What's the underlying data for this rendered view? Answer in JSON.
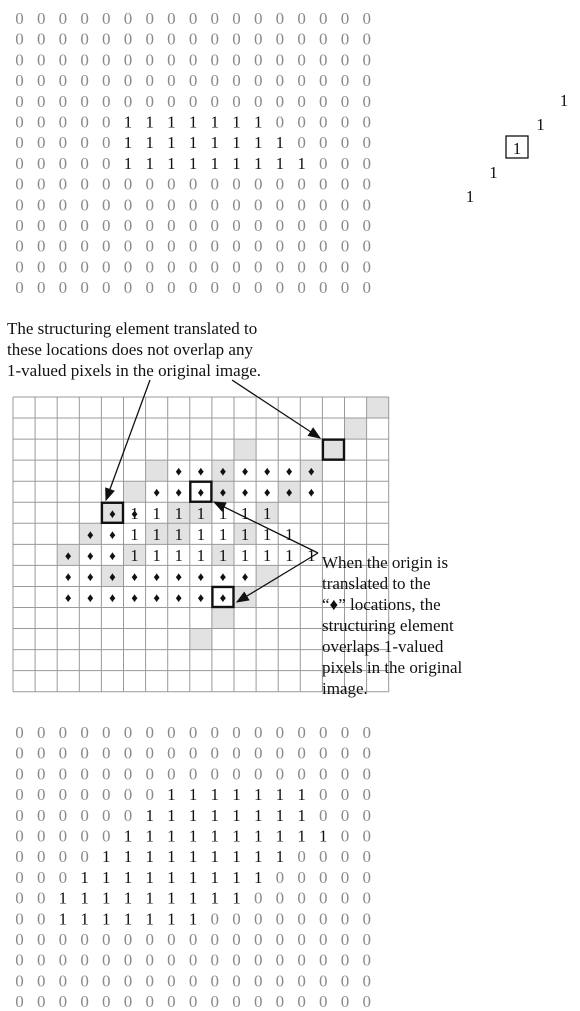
{
  "colors": {
    "zero_text": "#8a8a8a",
    "one_text": "#111111",
    "grid_line": "#9a9a9a",
    "shaded_cell": "#e2e2e2",
    "highlight_box": "#111111"
  },
  "original_image": {
    "rows": [
      "00000000000000000",
      "00000000000000000",
      "00000000000000000",
      "00000000000000000",
      "00000000000000000",
      "00000111111100000",
      "00000111111110000",
      "00000111111111000",
      "00000000000000000",
      "00000000000000000",
      "00000000000000000",
      "00000000000000000",
      "00000000000000000",
      "00000000000000000"
    ]
  },
  "structuring_element": {
    "cells": [
      "1",
      "1",
      "1",
      "1",
      "1"
    ],
    "origin_index": 2
  },
  "dilation_grid": {
    "num_rows": 14,
    "num_cols": 17,
    "ones": [
      [
        5,
        5
      ],
      [
        5,
        6
      ],
      [
        5,
        7
      ],
      [
        5,
        8
      ],
      [
        5,
        9
      ],
      [
        5,
        10
      ],
      [
        5,
        11
      ],
      [
        6,
        5
      ],
      [
        6,
        6
      ],
      [
        6,
        7
      ],
      [
        6,
        8
      ],
      [
        6,
        9
      ],
      [
        6,
        10
      ],
      [
        6,
        11
      ],
      [
        6,
        12
      ],
      [
        7,
        5
      ],
      [
        7,
        6
      ],
      [
        7,
        7
      ],
      [
        7,
        8
      ],
      [
        7,
        9
      ],
      [
        7,
        10
      ],
      [
        7,
        11
      ],
      [
        7,
        12
      ],
      [
        7,
        13
      ]
    ],
    "diamonds": [
      [
        3,
        7
      ],
      [
        3,
        8
      ],
      [
        3,
        9
      ],
      [
        3,
        10
      ],
      [
        3,
        11
      ],
      [
        3,
        12
      ],
      [
        3,
        13
      ],
      [
        4,
        6
      ],
      [
        4,
        7
      ],
      [
        4,
        8
      ],
      [
        4,
        9
      ],
      [
        4,
        10
      ],
      [
        4,
        11
      ],
      [
        4,
        12
      ],
      [
        4,
        13
      ],
      [
        5,
        4
      ],
      [
        5,
        5
      ],
      [
        6,
        3
      ],
      [
        6,
        4
      ],
      [
        7,
        2
      ],
      [
        7,
        3
      ],
      [
        7,
        4
      ],
      [
        8,
        2
      ],
      [
        8,
        3
      ],
      [
        8,
        4
      ],
      [
        8,
        5
      ],
      [
        8,
        6
      ],
      [
        8,
        7
      ],
      [
        8,
        8
      ],
      [
        8,
        9
      ],
      [
        8,
        10
      ],
      [
        9,
        2
      ],
      [
        9,
        3
      ],
      [
        9,
        4
      ],
      [
        9,
        5
      ],
      [
        9,
        6
      ],
      [
        9,
        7
      ],
      [
        9,
        8
      ],
      [
        9,
        9
      ]
    ],
    "shaded": [
      [
        0,
        16
      ],
      [
        1,
        15
      ],
      [
        2,
        14
      ],
      [
        3,
        13
      ],
      [
        4,
        12
      ],
      [
        3,
        6
      ],
      [
        4,
        5
      ],
      [
        5,
        4
      ],
      [
        6,
        3
      ],
      [
        7,
        2
      ],
      [
        5,
        7
      ],
      [
        6,
        6
      ],
      [
        7,
        5
      ],
      [
        8,
        4
      ],
      [
        4,
        9
      ],
      [
        5,
        8
      ],
      [
        6,
        7
      ],
      [
        2,
        10
      ],
      [
        3,
        9
      ],
      [
        5,
        11
      ],
      [
        6,
        10
      ],
      [
        7,
        9
      ],
      [
        8,
        11
      ],
      [
        9,
        10
      ],
      [
        10,
        9
      ],
      [
        11,
        8
      ]
    ],
    "boxed": [
      [
        2,
        14
      ],
      [
        4,
        8
      ],
      [
        5,
        4
      ],
      [
        9,
        9
      ]
    ]
  },
  "annotations": {
    "top_note": [
      "The structuring element translated to",
      "these locations does not overlap any",
      "1-valued pixels in the original image."
    ],
    "side_note": [
      "When the origin is",
      "translated to the",
      "“♦” locations, the",
      "structuring element",
      "overlaps 1-valued",
      "pixels in the original",
      "image."
    ],
    "diamond_symbol": "♦"
  },
  "result_image": {
    "rows": [
      "00000000000000000",
      "00000000000000000",
      "00000000000000000",
      "00000001111111000",
      "00000011111111000",
      "00000111111111100",
      "00001111111110000",
      "00011111111100000",
      "00111111111000000",
      "00111111100000000",
      "00000000000000000",
      "00000000000000000",
      "00000000000000000",
      "00000000000000000"
    ]
  }
}
